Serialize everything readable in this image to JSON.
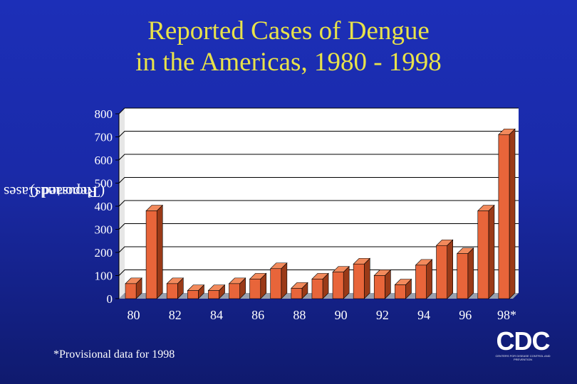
{
  "chart_data": {
    "type": "bar",
    "title_line1": "Reported Cases of Dengue",
    "title_line2": "in the Americas, 1980 - 1998",
    "ylabel_line1": "Reported Cases",
    "ylabel_line2": "(Thousands)",
    "ylim": [
      0,
      800
    ],
    "yticks": [
      "0",
      "100",
      "200",
      "300",
      "400",
      "500",
      "600",
      "700",
      "800"
    ],
    "x_tick_labels": [
      "80",
      "82",
      "84",
      "86",
      "88",
      "90",
      "92",
      "94",
      "96",
      "98*"
    ],
    "categories": [
      "1980",
      "1981",
      "1982",
      "1983",
      "1984",
      "1985",
      "1986",
      "1987",
      "1988",
      "1989",
      "1990",
      "1991",
      "1992",
      "1993",
      "1994",
      "1995",
      "1996",
      "1997",
      "1998"
    ],
    "values": [
      65,
      380,
      65,
      35,
      35,
      65,
      85,
      130,
      45,
      85,
      115,
      150,
      100,
      60,
      145,
      230,
      195,
      380,
      710
    ],
    "grid": "horizontal",
    "colors": {
      "bar_front": "#e8653a",
      "bar_side": "#9a3a18",
      "bar_top": "#f28a5c",
      "plot_bg": "#ffffff",
      "floor": "#9aa0ad"
    }
  },
  "footnote": "*Provisional data for 1998",
  "logo": {
    "text": "CDC",
    "subtitle": "CENTERS FOR DISEASE CONTROL AND PREVENTION"
  }
}
